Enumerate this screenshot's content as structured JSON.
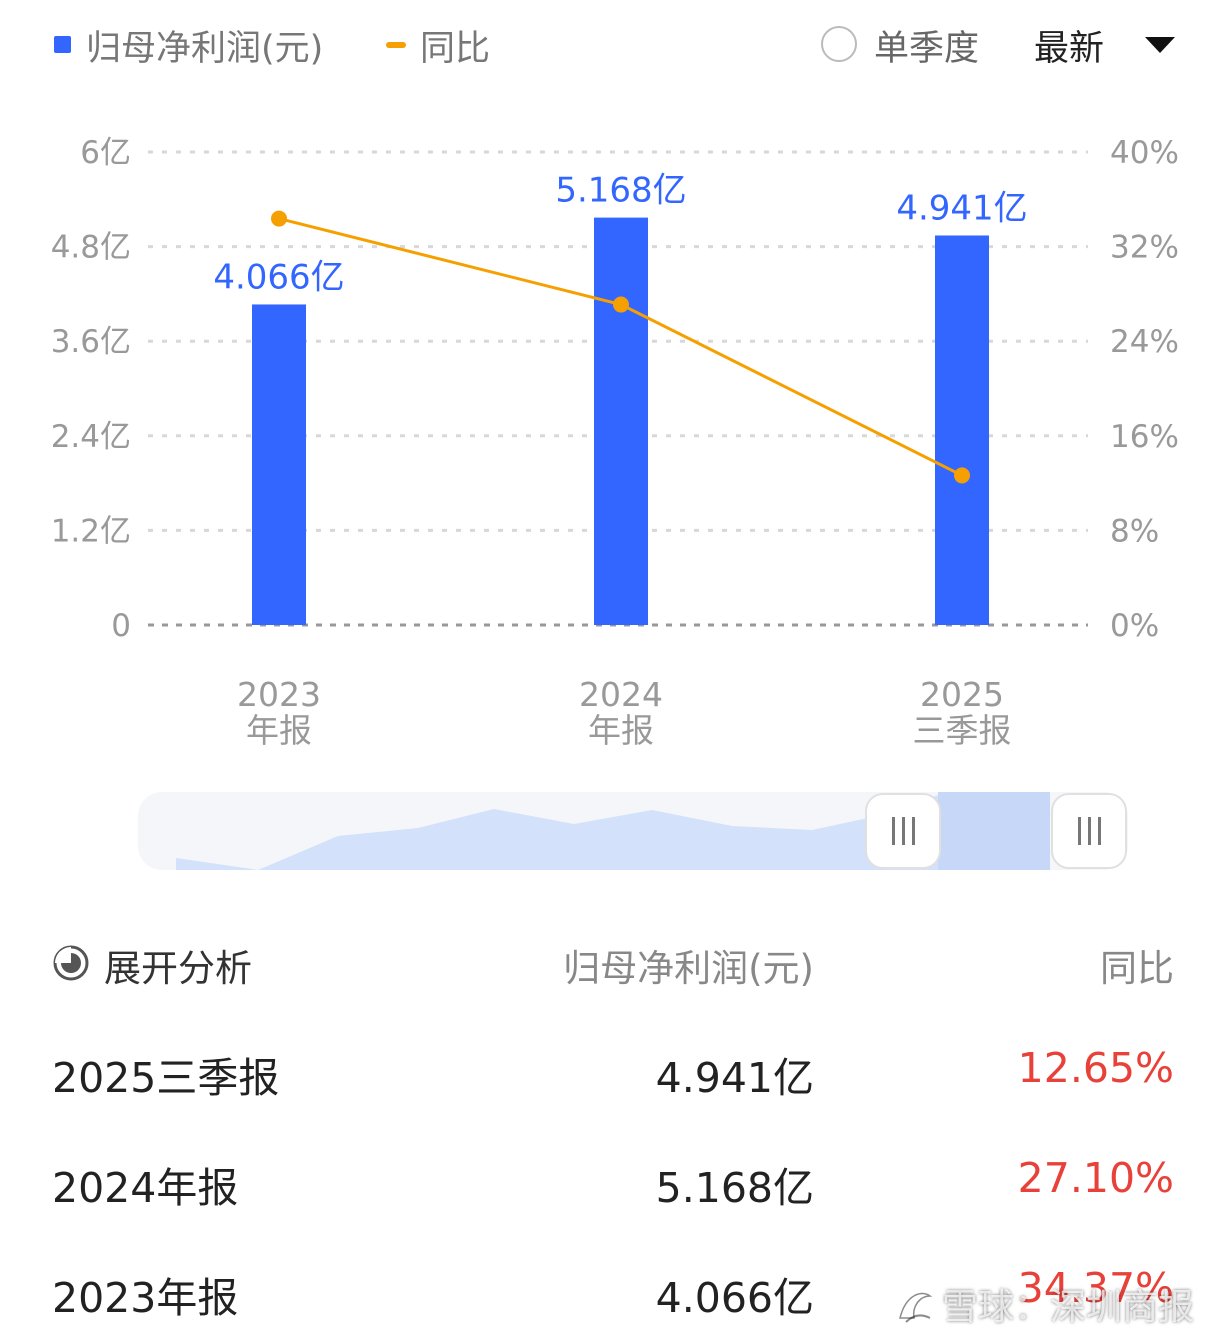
{
  "header": {
    "legend_bar": "归母净利润(元)",
    "legend_line": "同比",
    "single_quarter": "单季度",
    "dropdown_value": "最新"
  },
  "colors": {
    "bar": "#3366ff",
    "line": "#f5a000",
    "positive_pct": "#e8413a"
  },
  "chart_data": {
    "type": "bar",
    "categories": [
      [
        "2023",
        "年报"
      ],
      [
        "2024",
        "年报"
      ],
      [
        "2025",
        "三季报"
      ]
    ],
    "series": [
      {
        "name": "归母净利润(元)",
        "type": "bar",
        "axis": "left",
        "values": [
          4.066,
          5.168,
          4.941
        ],
        "labels": [
          "4.066亿",
          "5.168亿",
          "4.941亿"
        ]
      },
      {
        "name": "同比",
        "type": "line",
        "axis": "right",
        "values": [
          34.37,
          27.1,
          12.65
        ]
      }
    ],
    "y_left": {
      "ticks": [
        "6亿",
        "4.8亿",
        "3.6亿",
        "2.4亿",
        "1.2亿",
        "0"
      ],
      "range": [
        0,
        6
      ]
    },
    "y_right": {
      "ticks": [
        "40%",
        "32%",
        "24%",
        "16%",
        "8%",
        "0%"
      ],
      "range": [
        0,
        40
      ]
    },
    "grid": true
  },
  "table": {
    "expand_label": "展开分析",
    "col_value": "归母净利润(元)",
    "col_pct": "同比",
    "rows": [
      {
        "period": "2025三季报",
        "value": "4.941亿",
        "pct": "12.65%"
      },
      {
        "period": "2024年报",
        "value": "5.168亿",
        "pct": "27.10%"
      },
      {
        "period": "2023年报",
        "value": "4.066亿",
        "pct": "34.37%"
      }
    ]
  },
  "watermark": "雪球：深圳商报"
}
